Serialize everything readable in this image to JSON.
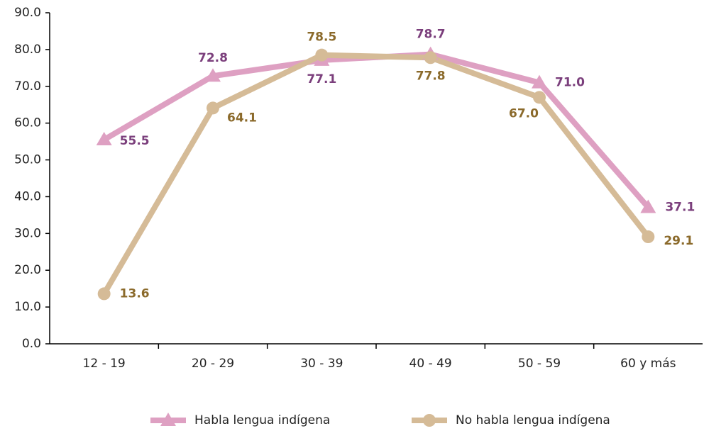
{
  "chart_data": {
    "type": "line",
    "categories": [
      "12 - 19",
      "20 - 29",
      "30 - 39",
      "40 - 49",
      "50 - 59",
      "60 y más"
    ],
    "series": [
      {
        "name": "Habla lengua indígena",
        "color": "#dea0c2",
        "label_color": "#7b3f7c",
        "marker": "triangle",
        "values": [
          55.5,
          72.8,
          77.1,
          78.7,
          71.0,
          37.1
        ],
        "value_labels": [
          "55.5",
          "72.8",
          "77.1",
          "78.7",
          "71.0",
          "37.1"
        ]
      },
      {
        "name": "No habla lengua indígena",
        "color": "#d5bb97",
        "label_color": "#8b6a2b",
        "marker": "circle",
        "values": [
          13.6,
          64.1,
          78.5,
          77.8,
          67.0,
          29.1
        ],
        "value_labels": [
          "13.6",
          "64.1",
          "78.5",
          "77.8",
          "67.0",
          "29.1"
        ]
      }
    ],
    "ylim": [
      0,
      90
    ],
    "yticks": [
      {
        "value": 0,
        "label": "0.0"
      },
      {
        "value": 10,
        "label": "10.0"
      },
      {
        "value": 20,
        "label": "20.0"
      },
      {
        "value": 30,
        "label": "30.0"
      },
      {
        "value": 40,
        "label": "40.0"
      },
      {
        "value": 50,
        "label": "50.0"
      },
      {
        "value": 60,
        "label": "60.0"
      },
      {
        "value": 70,
        "label": "70.0"
      },
      {
        "value": 80,
        "label": "80.0"
      },
      {
        "value": 90,
        "label": "90.0"
      }
    ],
    "legend": "bottom"
  }
}
